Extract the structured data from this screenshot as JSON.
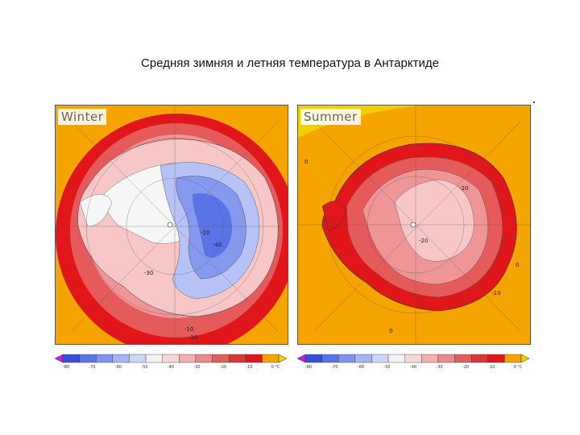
{
  "title": "Средняя зимняя и летняя температура в Антарктиде",
  "panels": {
    "winter": {
      "label": "Winter"
    },
    "summer": {
      "label": "Summer"
    }
  },
  "colorbar": {
    "colors": [
      "#c020e8",
      "#3a4fd8",
      "#5a73e6",
      "#7f93ee",
      "#a8b5f4",
      "#ced6f8",
      "#f2f2f2",
      "#f8d7d7",
      "#f2b0b0",
      "#ea8a8a",
      "#e06060",
      "#d83838",
      "#e0161a",
      "#f5a400",
      "#f2d000"
    ],
    "ticks": [
      "-80",
      "-70",
      "-60",
      "-50",
      "-40",
      "-30",
      "-20",
      "-10",
      "0 °C"
    ]
  },
  "winter_contour_labels": [
    "-20",
    "-40",
    "-30",
    "-10",
    "-10"
  ],
  "summer_contour_labels": [
    "-20",
    "-20",
    "0",
    "0",
    "0",
    "-10"
  ],
  "map_colors": {
    "yellow": "#f2d000",
    "orange": "#f5a400",
    "red": "#e0161a",
    "pink_dark": "#e55a5a",
    "pink": "#ef9595",
    "pink_light": "#f7c6c6",
    "white": "#f6f6f6",
    "blue_light": "#b7c3f6",
    "blue": "#8599ee",
    "blue_dark": "#5a73e6"
  }
}
